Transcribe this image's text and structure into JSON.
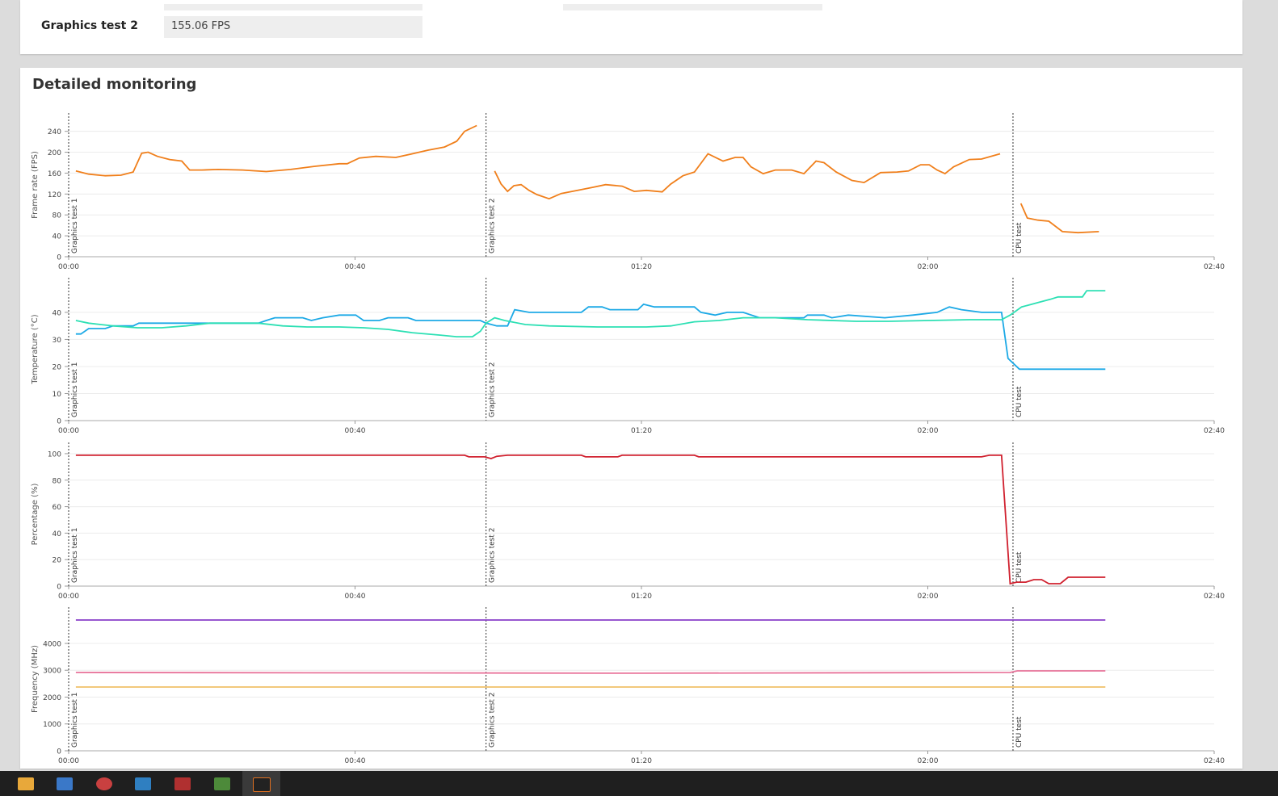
{
  "summary": {
    "label": "Graphics test 2",
    "value": "155.06 FPS"
  },
  "monitoring": {
    "title": "Detailed monitoring"
  },
  "chart_data": [
    {
      "type": "line",
      "ylabel": "Frame rate (FPS)",
      "xlim": [
        0,
        160
      ],
      "ylim": [
        0,
        275
      ],
      "xticks": [
        {
          "value": 0,
          "label": "00:00"
        },
        {
          "value": 40,
          "label": "00:40"
        },
        {
          "value": 80,
          "label": "01:20"
        },
        {
          "value": 120,
          "label": "02:00"
        },
        {
          "value": 160,
          "label": "02:40"
        }
      ],
      "yticks": [
        0,
        40,
        80,
        120,
        160,
        200,
        240
      ],
      "markers": [
        {
          "x": 0,
          "label": "Graphics test 1"
        },
        {
          "x": 58.3,
          "label": "Graphics test 2"
        },
        {
          "x": 131.9,
          "label": "CPU test"
        }
      ],
      "series": [
        {
          "color": "#f07f1b",
          "x": [
            1.0,
            2.8,
            5.1,
            7.3,
            9.0,
            10.2,
            11.1,
            12.4,
            14.1,
            15.8,
            16.9,
            18.6,
            20.9,
            24.3,
            27.6,
            31.0,
            34.4,
            37.8,
            38.9,
            40.6,
            42.9,
            45.7,
            48.0,
            50.2,
            52.5,
            54.2,
            55.3,
            57.0,
            58.3,
            59.5,
            60.4,
            61.3,
            62.2,
            63.2,
            64.3,
            65.4,
            67.1,
            68.8,
            71.1,
            73.3,
            75.0,
            77.3,
            79.0,
            80.7,
            82.9,
            84.1,
            85.8,
            87.4,
            89.3,
            91.4,
            93.1,
            94.2,
            95.3,
            97.0,
            98.7,
            101.0,
            102.7,
            104.4,
            105.5,
            107.2,
            109.4,
            111.1,
            113.4,
            115.7,
            117.3,
            119.0,
            120.2,
            121.3,
            122.4,
            123.6,
            125.8,
            127.5,
            130.1,
            131.9,
            133.0,
            133.9,
            135.4,
            136.9,
            138.8,
            141.0,
            143.9
          ],
          "values": [
            164,
            158,
            155,
            156,
            162,
            198,
            200,
            192,
            186,
            183,
            166,
            166,
            167,
            166,
            163,
            167,
            173,
            178,
            178,
            189,
            192,
            190,
            197,
            204,
            210,
            221,
            240,
            251,
            null,
            164,
            139,
            125,
            136,
            138,
            127,
            119,
            111,
            121,
            127,
            133,
            138,
            135,
            125,
            127,
            124,
            139,
            155,
            162,
            197,
            183,
            190,
            190,
            172,
            159,
            166,
            166,
            159,
            183,
            180,
            162,
            146,
            142,
            161,
            162,
            164,
            176,
            176,
            166,
            159,
            172,
            186,
            187,
            197,
            null,
            102,
            74,
            70,
            68,
            48,
            46,
            48
          ]
        }
      ]
    },
    {
      "type": "line",
      "ylabel": "Temperature (°C)",
      "xlim": [
        0,
        160
      ],
      "ylim": [
        0,
        52.8
      ],
      "xticks": [
        {
          "value": 0,
          "label": "00:00"
        },
        {
          "value": 40,
          "label": "00:40"
        },
        {
          "value": 80,
          "label": "01:20"
        },
        {
          "value": 120,
          "label": "02:00"
        },
        {
          "value": 160,
          "label": "02:40"
        }
      ],
      "yticks": [
        0,
        10,
        20,
        30,
        40
      ],
      "markers": [
        {
          "x": 0,
          "label": "Graphics test 1"
        },
        {
          "x": 58.3,
          "label": "Graphics test 2"
        },
        {
          "x": 131.9,
          "label": "CPU test"
        }
      ],
      "series": [
        {
          "color": "#1ca9e6",
          "x": [
            1.0,
            1.7,
            2.8,
            5.1,
            6.2,
            9.0,
            9.8,
            26.5,
            27.6,
            28.8,
            32.7,
            33.9,
            35.5,
            37.8,
            40.1,
            41.2,
            43.4,
            44.6,
            47.4,
            48.5,
            57.5,
            58.3,
            59.8,
            61.3,
            62.3,
            64.3,
            71.6,
            72.6,
            74.5,
            75.6,
            79.5,
            80.3,
            81.8,
            87.4,
            88.3,
            90.3,
            92.0,
            94.2,
            96.5,
            102.7,
            103.2,
            105.5,
            106.6,
            108.9,
            114.0,
            117.9,
            121.3,
            123.0,
            124.7,
            127.5,
            130.3,
            131.2,
            132.8,
            144.8
          ],
          "values": [
            32,
            32,
            34,
            34,
            35,
            35,
            36,
            36,
            37,
            38,
            38,
            37,
            38,
            39,
            39,
            37,
            37,
            38,
            38,
            37,
            37,
            36,
            35,
            35,
            41,
            40,
            40,
            42,
            42,
            41,
            41,
            43,
            42,
            42,
            40,
            39,
            40,
            40,
            38,
            38,
            39,
            39,
            38,
            39,
            38,
            39,
            40,
            42,
            41,
            40,
            40,
            23,
            19,
            19
          ]
        },
        {
          "color": "#2de0b4",
          "x": [
            1.0,
            2.8,
            6.2,
            9.6,
            13.0,
            16.4,
            19.7,
            23.1,
            26.5,
            29.9,
            33.3,
            37.8,
            41.2,
            44.6,
            48.0,
            51.9,
            54.2,
            56.4,
            57.5,
            58.3,
            59.5,
            60.9,
            63.8,
            67.1,
            73.9,
            80.7,
            84.1,
            87.4,
            90.8,
            94.2,
            98.7,
            103.2,
            110.0,
            114.5,
            120.2,
            125.8,
            130.3,
            131.5,
            133.1,
            135.4,
            137.1,
            138.2,
            141.6,
            142.2,
            144.8
          ],
          "values": [
            37,
            36,
            35,
            34.3,
            34.3,
            35,
            36,
            36,
            36,
            35,
            34.6,
            34.6,
            34.3,
            33.7,
            32.5,
            31.6,
            31,
            31,
            33,
            36,
            38,
            37,
            35.5,
            35,
            34.6,
            34.6,
            35,
            36.5,
            37,
            38,
            38,
            37.3,
            36.7,
            36.7,
            37,
            37.3,
            37.3,
            39,
            42,
            43.6,
            44.8,
            45.7,
            45.7,
            48,
            48
          ]
        }
      ]
    },
    {
      "type": "line",
      "ylabel": "Percentage (%)",
      "xlim": [
        0,
        160
      ],
      "ylim": [
        0,
        108.5
      ],
      "xticks": [
        {
          "value": 0,
          "label": "00:00"
        },
        {
          "value": 40,
          "label": "00:40"
        },
        {
          "value": 80,
          "label": "01:20"
        },
        {
          "value": 120,
          "label": "02:00"
        },
        {
          "value": 160,
          "label": "02:40"
        }
      ],
      "yticks": [
        0,
        20,
        40,
        60,
        80,
        100
      ],
      "markers": [
        {
          "x": 0,
          "label": "Graphics test 1"
        },
        {
          "x": 58.3,
          "label": "Graphics test 2"
        },
        {
          "x": 131.9,
          "label": "CPU test"
        }
      ],
      "series": [
        {
          "color": "#d0202e",
          "x": [
            1.0,
            55.3,
            55.9,
            58.1,
            59.0,
            59.8,
            61.3,
            71.6,
            72.2,
            76.7,
            77.3,
            87.4,
            88.0,
            127.5,
            128.6,
            130.3,
            131.5,
            132.4,
            133.7,
            134.8,
            135.9,
            136.9,
            138.5,
            139.6,
            144.8
          ],
          "values": [
            98.8,
            98.8,
            97.6,
            97.6,
            96.3,
            98,
            98.8,
            98.8,
            97.6,
            97.6,
            98.8,
            98.8,
            97.6,
            97.6,
            98.8,
            98.8,
            1.8,
            3,
            3,
            4.9,
            4.9,
            1.8,
            1.8,
            6.7,
            6.7
          ]
        }
      ]
    },
    {
      "type": "line",
      "ylabel": "Frequency (MHz)",
      "xlim": [
        0,
        160
      ],
      "ylim": [
        0,
        5353
      ],
      "xticks": [
        {
          "value": 0,
          "label": "00:00"
        },
        {
          "value": 40,
          "label": "00:40"
        },
        {
          "value": 80,
          "label": "01:20"
        },
        {
          "value": 120,
          "label": "02:00"
        },
        {
          "value": 160,
          "label": "02:40"
        }
      ],
      "yticks": [
        0,
        1000,
        2000,
        3000,
        4000
      ],
      "markers": [
        {
          "x": 0,
          "label": "Graphics test 1"
        },
        {
          "x": 58.3,
          "label": "Graphics test 2"
        },
        {
          "x": 131.9,
          "label": "CPU test"
        }
      ],
      "series": [
        {
          "color": "#8a3fc9",
          "x": [
            1.0,
            144.8
          ],
          "values": [
            4872,
            4872
          ]
        },
        {
          "color": "#e8739a",
          "x": [
            1.0,
            80,
            131.5,
            132.5,
            144.8
          ],
          "values": [
            2917,
            2890,
            2917,
            2977,
            2977
          ]
        },
        {
          "color": "#f0c06a",
          "x": [
            1.0,
            144.8
          ],
          "values": [
            2376,
            2376
          ]
        }
      ]
    }
  ]
}
